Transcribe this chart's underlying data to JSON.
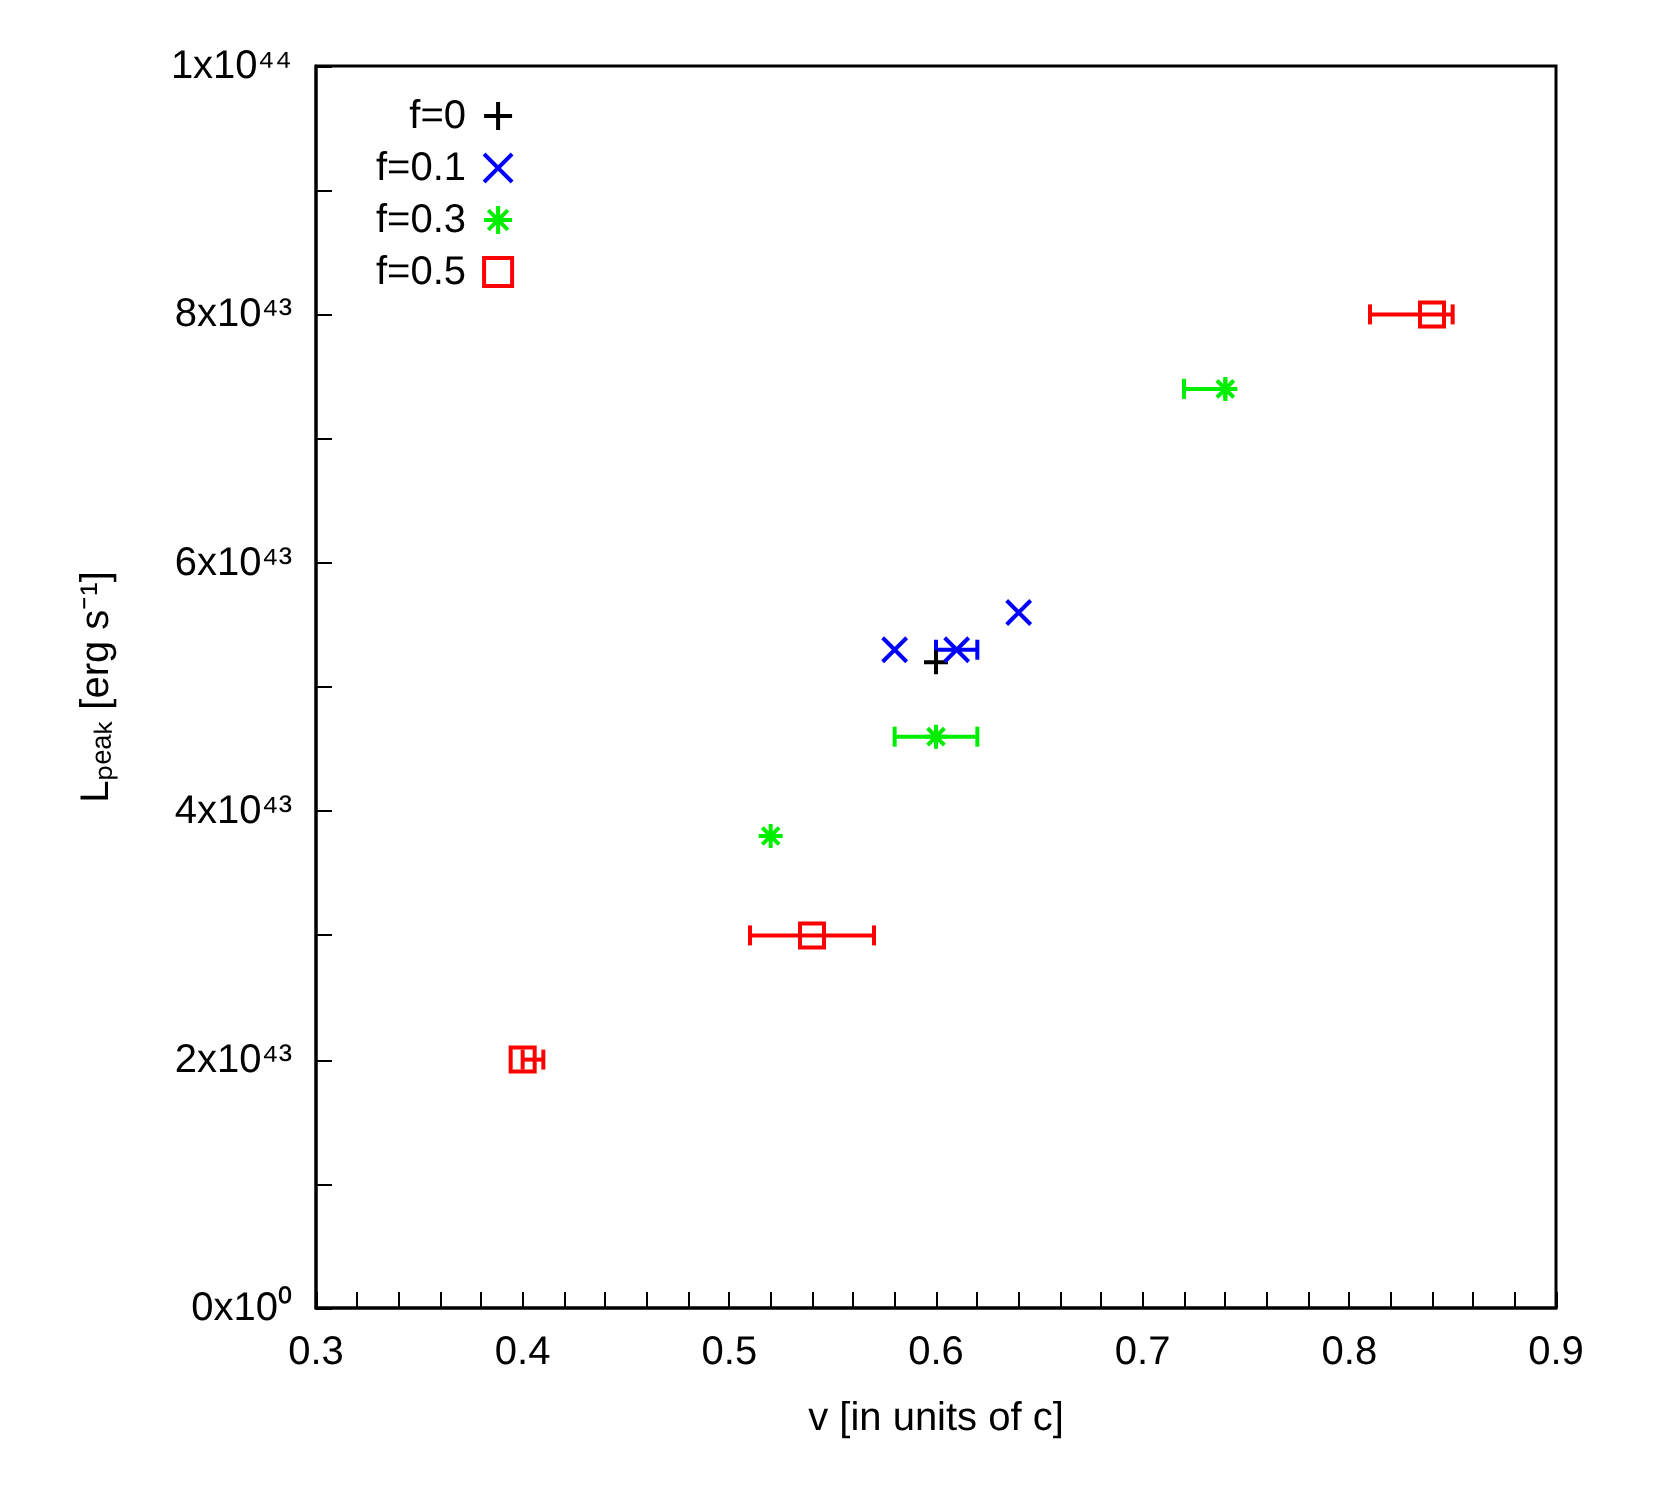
{
  "chart_data": {
    "type": "scatter",
    "xlabel": "v [in units of c]",
    "ylabel": "Lₚₑₐₖ [erg s⁻¹]",
    "xlim": [
      0.3,
      0.9
    ],
    "xticks": [
      0.3,
      {
        "value": 0.32,
        "label": null
      },
      {
        "value": 0.34,
        "label": null
      },
      {
        "value": 0.36,
        "label": null
      },
      {
        "value": 0.38,
        "label": null
      },
      0.4,
      {
        "value": 0.42,
        "label": null
      },
      {
        "value": 0.44,
        "label": null
      },
      {
        "value": 0.46,
        "label": null
      },
      {
        "value": 0.48,
        "label": null
      },
      0.5,
      {
        "value": 0.52,
        "label": null
      },
      {
        "value": 0.54,
        "label": null
      },
      {
        "value": 0.56,
        "label": null
      },
      {
        "value": 0.58,
        "label": null
      },
      0.6,
      {
        "value": 0.62,
        "label": null
      },
      {
        "value": 0.64,
        "label": null
      },
      {
        "value": 0.66,
        "label": null
      },
      {
        "value": 0.68,
        "label": null
      },
      0.7,
      {
        "value": 0.72,
        "label": null
      },
      {
        "value": 0.74,
        "label": null
      },
      {
        "value": 0.76,
        "label": null
      },
      {
        "value": 0.78,
        "label": null
      },
      0.8,
      {
        "value": 0.82,
        "label": null
      },
      {
        "value": 0.84,
        "label": null
      },
      {
        "value": 0.86,
        "label": null
      },
      {
        "value": 0.88,
        "label": null
      },
      0.9
    ],
    "ylim": [
      0,
      1e+44
    ],
    "yticks": [
      {
        "value": 0,
        "label": "0x10⁰"
      },
      {
        "value": 1e+43,
        "label": null
      },
      {
        "value": 2e+43,
        "label": "2x10⁴³"
      },
      {
        "value": 3e+43,
        "label": null
      },
      {
        "value": 4e+43,
        "label": "4x10⁴³"
      },
      {
        "value": 5e+43,
        "label": null
      },
      {
        "value": 6e+43,
        "label": "6x10⁴³"
      },
      {
        "value": 7e+43,
        "label": null
      },
      {
        "value": 8e+43,
        "label": "8x10⁴³"
      },
      {
        "value": 9e+43,
        "label": null
      },
      {
        "value": 1e+44,
        "label": "1x10⁴⁴"
      }
    ],
    "grid": false,
    "legend": "top left",
    "series": [
      {
        "name": "f=0",
        "color": "#000000",
        "marker": "plus",
        "x": [
          0.6
        ],
        "values": [
          5.2e+43
        ]
      },
      {
        "name": "f=0.1",
        "color": "#0000ff",
        "marker": "cross",
        "x": [
          0.58,
          0.61,
          0.64
        ],
        "values": [
          5.3e+43,
          5.3e+43,
          5.6e+43
        ],
        "xerrors": [
          null,
          [
            0.6,
            0.62
          ],
          null
        ]
      },
      {
        "name": "f=0.3",
        "color": "#00ee00",
        "x": [
          0.52,
          0.6,
          0.74
        ],
        "values": [
          3.8e+43,
          4.6e+43,
          7.4e+43
        ],
        "xerrors": [
          null,
          [
            0.58,
            0.62
          ],
          [
            0.72,
            0.74
          ]
        ]
      },
      {
        "name": "f=0.5",
        "color": "#ff0000",
        "marker": "square",
        "x": [
          0.4,
          0.54,
          0.84
        ],
        "values": [
          2e+43,
          3e+43,
          8e+43
        ],
        "xerrors": [
          [
            0.4,
            0.41
          ],
          [
            0.51,
            0.57
          ],
          [
            0.81,
            0.85
          ]
        ]
      }
    ]
  }
}
